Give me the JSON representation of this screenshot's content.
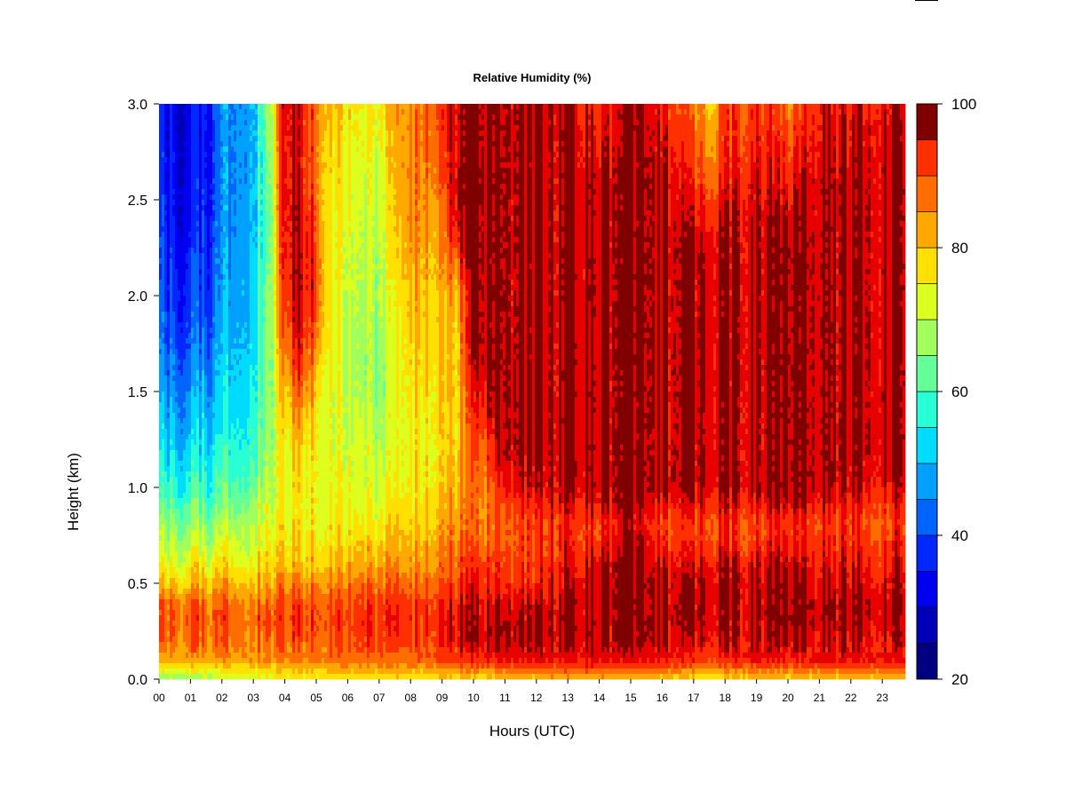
{
  "chart_data": {
    "type": "heatmap",
    "title": "Relative Humidity (%)",
    "xlabel": "Hours (UTC)",
    "ylabel": "Height (km)",
    "x_tick_labels": [
      "00",
      "01",
      "02",
      "03",
      "04",
      "05",
      "06",
      "07",
      "08",
      "09",
      "10",
      "11",
      "12",
      "13",
      "14",
      "15",
      "16",
      "17",
      "18",
      "19",
      "20",
      "21",
      "22",
      "23"
    ],
    "y_tick_labels": [
      "0.0",
      "0.5",
      "1.0",
      "1.5",
      "2.0",
      "2.5",
      "3.0"
    ],
    "xlim": [
      0,
      23.9
    ],
    "ylim": [
      0,
      3.0
    ],
    "colorbar": {
      "range": [
        20,
        100
      ],
      "tick_labels": [
        "20",
        "40",
        "60",
        "80",
        "100"
      ],
      "levels": [
        20,
        25,
        30,
        35,
        40,
        45,
        50,
        55,
        60,
        65,
        70,
        75,
        80,
        85,
        90,
        95,
        100
      ],
      "colors": [
        "#000080",
        "#0000b8",
        "#0000f0",
        "#0028ff",
        "#0064ff",
        "#00a0ff",
        "#00dcff",
        "#28ffd4",
        "#64ff98",
        "#a0ff5c",
        "#dcff20",
        "#ffe000",
        "#ffa800",
        "#ff6c00",
        "#ff3000",
        "#e80000",
        "#800000"
      ]
    },
    "height_levels_km": [
      0.0,
      0.03,
      0.06,
      0.1,
      0.2,
      0.3,
      0.4,
      0.5,
      0.6,
      0.7,
      0.8,
      0.9,
      1.0,
      1.2,
      1.4,
      1.6,
      1.8,
      2.0,
      2.2,
      2.4,
      2.6,
      2.8,
      3.0
    ],
    "profiles": [
      {
        "hour": 0.0,
        "rh": [
          68,
          72,
          76,
          82,
          88,
          90,
          88,
          80,
          74,
          70,
          66,
          62,
          58,
          54,
          50,
          46,
          42,
          40,
          38,
          38,
          36,
          36,
          36
        ]
      },
      {
        "hour": 0.5,
        "rh": [
          66,
          72,
          76,
          82,
          88,
          90,
          88,
          80,
          74,
          70,
          66,
          62,
          58,
          52,
          48,
          44,
          40,
          38,
          36,
          34,
          34,
          32,
          32
        ]
      },
      {
        "hour": 1.0,
        "rh": [
          66,
          72,
          77,
          83,
          88,
          90,
          88,
          80,
          75,
          70,
          66,
          62,
          58,
          52,
          48,
          44,
          40,
          38,
          36,
          34,
          33,
          32,
          32
        ]
      },
      {
        "hour": 1.5,
        "rh": [
          68,
          72,
          78,
          83,
          88,
          90,
          88,
          81,
          75,
          70,
          66,
          62,
          58,
          54,
          50,
          46,
          42,
          40,
          38,
          37,
          36,
          35,
          35
        ]
      },
      {
        "hour": 2.0,
        "rh": [
          70,
          74,
          78,
          84,
          88,
          90,
          88,
          82,
          76,
          72,
          68,
          64,
          60,
          56,
          52,
          50,
          48,
          46,
          44,
          44,
          44,
          44,
          44
        ]
      },
      {
        "hour": 2.5,
        "rh": [
          72,
          76,
          80,
          85,
          89,
          90,
          88,
          82,
          77,
          73,
          70,
          66,
          62,
          58,
          55,
          53,
          51,
          50,
          49,
          48,
          48,
          48,
          48
        ]
      },
      {
        "hour": 3.0,
        "rh": [
          72,
          76,
          80,
          85,
          89,
          91,
          88,
          83,
          78,
          74,
          72,
          70,
          66,
          62,
          60,
          58,
          56,
          55,
          54,
          53,
          53,
          52,
          52
        ]
      },
      {
        "hour": 3.5,
        "rh": [
          72,
          76,
          80,
          85,
          89,
          91,
          88,
          84,
          79,
          76,
          74,
          72,
          70,
          68,
          67,
          66,
          66,
          65,
          64,
          63,
          64,
          66,
          68
        ]
      },
      {
        "hour": 4.0,
        "rh": [
          74,
          78,
          82,
          86,
          90,
          92,
          90,
          86,
          80,
          78,
          76,
          74,
          74,
          76,
          80,
          84,
          90,
          94,
          96,
          98,
          98,
          98,
          100
        ]
      },
      {
        "hour": 4.5,
        "rh": [
          74,
          78,
          82,
          86,
          90,
          92,
          90,
          86,
          80,
          78,
          76,
          75,
          76,
          78,
          84,
          92,
          96,
          98,
          98,
          98,
          96,
          96,
          96
        ]
      },
      {
        "hour": 5.0,
        "rh": [
          74,
          78,
          82,
          86,
          90,
          92,
          90,
          86,
          80,
          78,
          76,
          76,
          76,
          76,
          78,
          82,
          88,
          92,
          92,
          90,
          88,
          88,
          88
        ]
      },
      {
        "hour": 5.5,
        "rh": [
          76,
          80,
          84,
          88,
          90,
          92,
          90,
          86,
          80,
          78,
          76,
          74,
          74,
          72,
          72,
          74,
          74,
          74,
          74,
          74,
          76,
          78,
          80
        ]
      },
      {
        "hour": 6.0,
        "rh": [
          76,
          80,
          84,
          88,
          90,
          92,
          90,
          86,
          82,
          78,
          76,
          74,
          74,
          72,
          72,
          70,
          70,
          72,
          72,
          74,
          74,
          76,
          78
        ]
      },
      {
        "hour": 6.5,
        "rh": [
          76,
          80,
          84,
          88,
          92,
          94,
          92,
          88,
          82,
          80,
          76,
          74,
          72,
          72,
          70,
          68,
          68,
          68,
          70,
          70,
          72,
          74,
          74
        ]
      },
      {
        "hour": 7.0,
        "rh": [
          76,
          80,
          84,
          88,
          92,
          94,
          92,
          88,
          84,
          80,
          76,
          74,
          72,
          70,
          68,
          66,
          68,
          70,
          70,
          72,
          72,
          74,
          76
        ]
      },
      {
        "hour": 7.5,
        "rh": [
          76,
          80,
          84,
          88,
          92,
          94,
          92,
          88,
          84,
          80,
          78,
          76,
          74,
          72,
          72,
          72,
          72,
          74,
          76,
          78,
          80,
          80,
          82
        ]
      },
      {
        "hour": 8.0,
        "rh": [
          76,
          80,
          84,
          88,
          92,
          94,
          92,
          88,
          84,
          82,
          80,
          78,
          76,
          76,
          76,
          78,
          80,
          82,
          84,
          86,
          86,
          86,
          86
        ]
      },
      {
        "hour": 8.5,
        "rh": [
          76,
          80,
          84,
          90,
          94,
          95,
          94,
          90,
          86,
          84,
          82,
          80,
          78,
          78,
          78,
          80,
          82,
          82,
          84,
          86,
          88,
          90,
          90
        ]
      },
      {
        "hour": 9.0,
        "rh": [
          78,
          82,
          86,
          92,
          96,
          96,
          94,
          90,
          88,
          86,
          84,
          82,
          80,
          78,
          80,
          80,
          80,
          82,
          84,
          86,
          90,
          92,
          94
        ]
      },
      {
        "hour": 9.5,
        "rh": [
          78,
          82,
          86,
          92,
          97,
          97,
          96,
          92,
          90,
          88,
          86,
          84,
          82,
          80,
          80,
          80,
          80,
          82,
          92,
          100,
          100,
          100,
          100
        ]
      },
      {
        "hour": 10.0,
        "rh": [
          78,
          82,
          88,
          94,
          98,
          98,
          96,
          94,
          92,
          88,
          86,
          86,
          86,
          88,
          92,
          96,
          100,
          100,
          100,
          100,
          100,
          100,
          100
        ]
      },
      {
        "hour": 10.5,
        "rh": [
          78,
          82,
          88,
          94,
          98,
          98,
          96,
          94,
          92,
          88,
          86,
          86,
          88,
          92,
          98,
          100,
          100,
          100,
          100,
          100,
          100,
          100,
          100
        ]
      },
      {
        "hour": 11.0,
        "rh": [
          80,
          84,
          90,
          96,
          100,
          100,
          98,
          94,
          92,
          90,
          90,
          92,
          96,
          100,
          100,
          100,
          100,
          100,
          100,
          100,
          100,
          100,
          100
        ]
      },
      {
        "hour": 12.0,
        "rh": [
          80,
          84,
          90,
          96,
          100,
          100,
          98,
          94,
          92,
          92,
          92,
          94,
          98,
          100,
          100,
          100,
          100,
          100,
          100,
          100,
          100,
          100,
          100
        ]
      },
      {
        "hour": 13.0,
        "rh": [
          82,
          86,
          92,
          96,
          100,
          100,
          100,
          98,
          96,
          94,
          94,
          96,
          100,
          100,
          100,
          100,
          100,
          100,
          100,
          100,
          100,
          100,
          100
        ]
      },
      {
        "hour": 14.0,
        "rh": [
          82,
          86,
          92,
          96,
          100,
          100,
          100,
          100,
          98,
          94,
          92,
          96,
          100,
          100,
          100,
          100,
          100,
          100,
          100,
          100,
          100,
          96,
          94
        ]
      },
      {
        "hour": 15.0,
        "rh": [
          80,
          84,
          90,
          96,
          100,
          100,
          100,
          100,
          100,
          100,
          98,
          100,
          100,
          100,
          100,
          100,
          100,
          100,
          100,
          100,
          100,
          100,
          100
        ]
      },
      {
        "hour": 16.0,
        "rh": [
          80,
          84,
          90,
          96,
          100,
          100,
          100,
          100,
          98,
          94,
          92,
          96,
          100,
          100,
          100,
          100,
          100,
          100,
          100,
          100,
          100,
          98,
          96
        ]
      },
      {
        "hour": 17.0,
        "rh": [
          78,
          82,
          88,
          94,
          98,
          100,
          100,
          100,
          96,
          94,
          92,
          96,
          100,
          100,
          100,
          100,
          100,
          100,
          100,
          98,
          94,
          90,
          88
        ]
      },
      {
        "hour": 17.5,
        "rh": [
          76,
          80,
          86,
          92,
          98,
          100,
          100,
          100,
          98,
          94,
          92,
          96,
          100,
          100,
          100,
          100,
          100,
          100,
          100,
          96,
          90,
          86,
          82
        ]
      },
      {
        "hour": 18.0,
        "rh": [
          78,
          82,
          88,
          94,
          98,
          100,
          100,
          100,
          98,
          94,
          92,
          96,
          100,
          100,
          100,
          100,
          100,
          100,
          100,
          98,
          94,
          92,
          90
        ]
      },
      {
        "hour": 19.0,
        "rh": [
          80,
          84,
          90,
          96,
          100,
          100,
          100,
          100,
          98,
          94,
          92,
          96,
          100,
          100,
          100,
          100,
          100,
          100,
          100,
          100,
          98,
          96,
          94
        ]
      },
      {
        "hour": 20.0,
        "rh": [
          78,
          82,
          88,
          94,
          98,
          100,
          100,
          100,
          98,
          94,
          92,
          96,
          100,
          100,
          100,
          100,
          100,
          100,
          100,
          98,
          94,
          90,
          86
        ]
      },
      {
        "hour": 21.0,
        "rh": [
          80,
          84,
          90,
          96,
          98,
          100,
          100,
          98,
          96,
          94,
          92,
          96,
          100,
          100,
          100,
          100,
          100,
          100,
          100,
          100,
          100,
          98,
          96
        ]
      },
      {
        "hour": 22.0,
        "rh": [
          80,
          84,
          90,
          96,
          98,
          100,
          100,
          98,
          96,
          94,
          92,
          94,
          98,
          100,
          100,
          100,
          100,
          100,
          100,
          100,
          100,
          98,
          96
        ]
      },
      {
        "hour": 23.0,
        "rh": [
          80,
          84,
          90,
          96,
          98,
          100,
          100,
          98,
          96,
          94,
          92,
          94,
          98,
          100,
          100,
          100,
          100,
          100,
          100,
          100,
          100,
          100,
          98
        ]
      },
      {
        "hour": 23.9,
        "rh": [
          80,
          84,
          90,
          96,
          98,
          100,
          100,
          98,
          96,
          94,
          92,
          94,
          98,
          100,
          100,
          100,
          100,
          100,
          100,
          100,
          100,
          100,
          98
        ]
      }
    ]
  }
}
